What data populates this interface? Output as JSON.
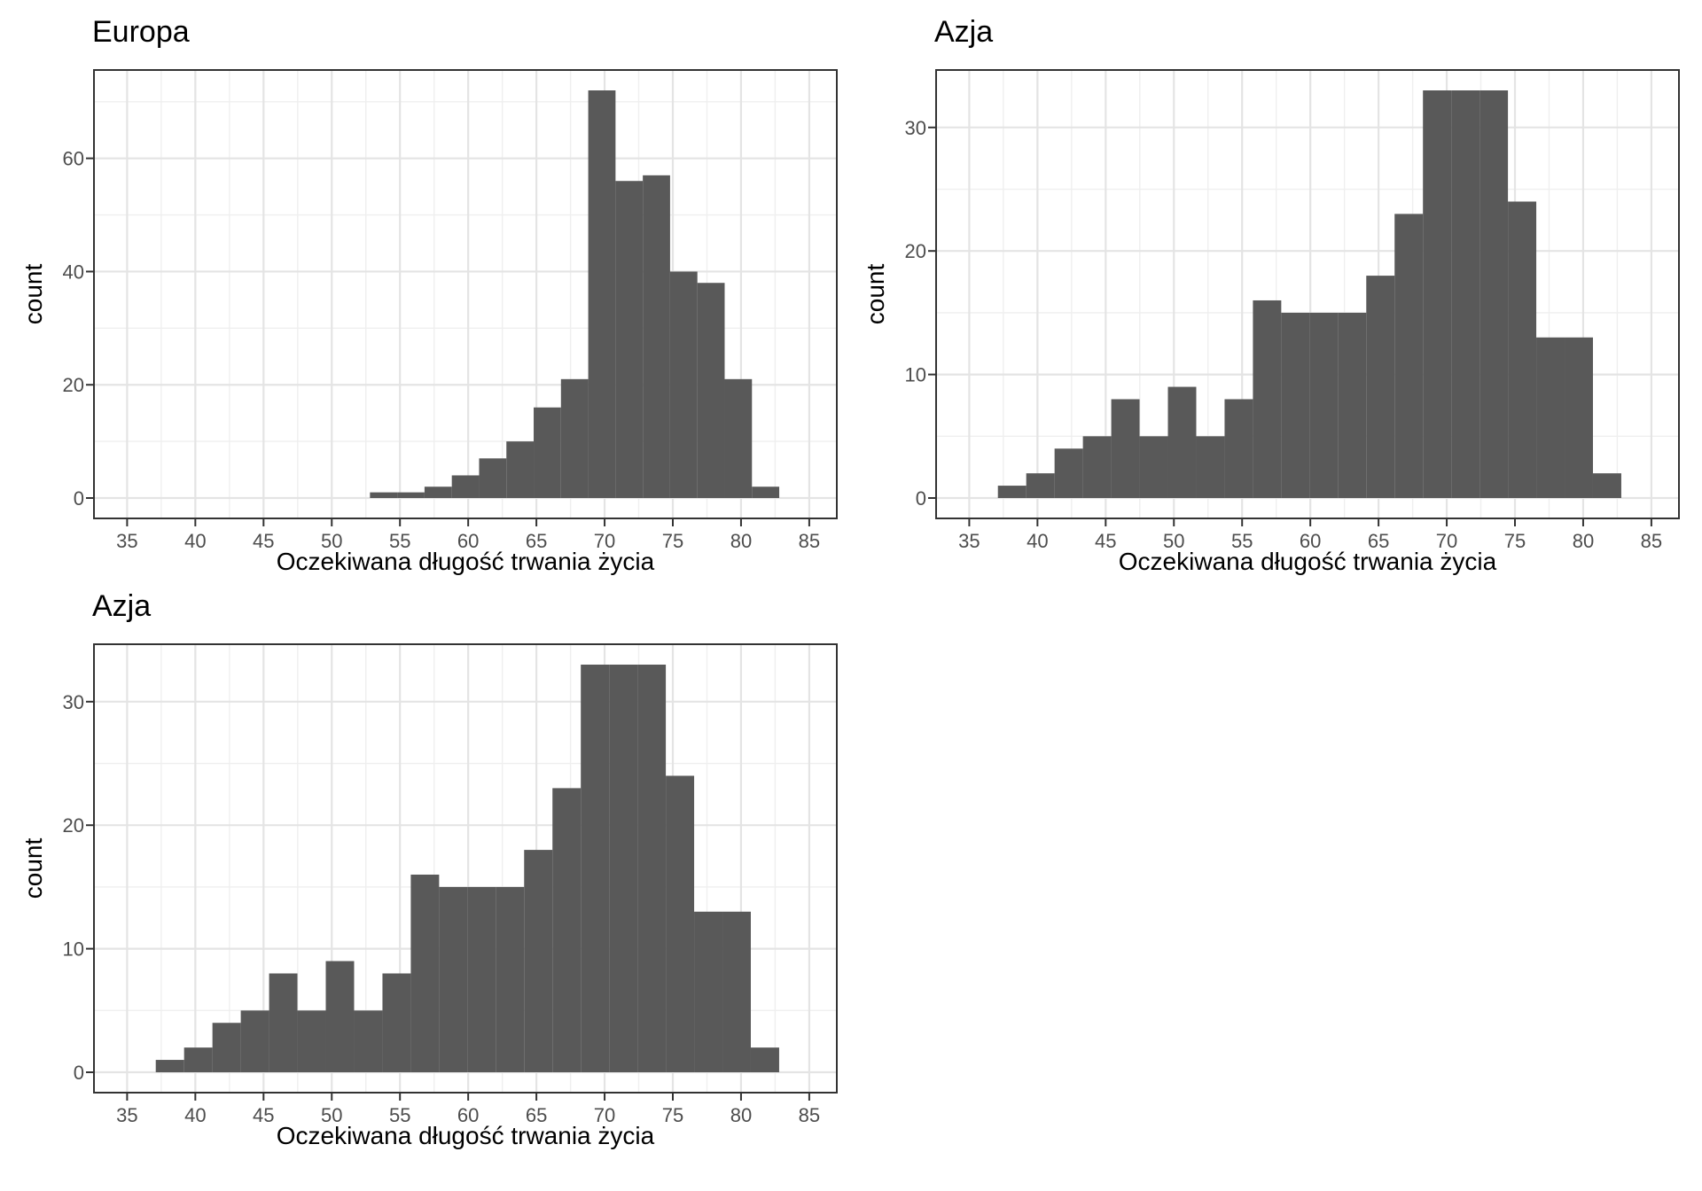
{
  "page": {
    "background_color": "#ffffff",
    "bar_color": "#595959",
    "panel_border_color": "#333333",
    "grid_major_color": "#e4e4e4",
    "grid_minor_color": "#efefef",
    "axis_text_color": "#4d4d4d",
    "tick_mark_color": "#333333",
    "title_color": "#000000"
  },
  "chart_data": [
    {
      "type": "histogram",
      "title": "Europa",
      "xlabel": "Oczekiwana długość trwania życia",
      "ylabel": "count",
      "bin_start": 52.8,
      "bin_width": 2.0,
      "counts": [
        1,
        1,
        2,
        4,
        7,
        10,
        16,
        21,
        72,
        56,
        57,
        40,
        38,
        21,
        2
      ],
      "x_ticks": [
        35,
        40,
        45,
        50,
        55,
        60,
        65,
        70,
        75,
        80,
        85
      ],
      "y_ticks": [
        0,
        20,
        40,
        60
      ],
      "y_max": 72,
      "x_range_shown": [
        32.6,
        87.0
      ],
      "grid": "major+minor",
      "legend": "none"
    },
    {
      "type": "histogram",
      "title": "Azja",
      "xlabel": "Oczekiwana długość trwania życia",
      "ylabel": "count",
      "bin_start": 37.1,
      "bin_width": 2.077,
      "counts": [
        1,
        2,
        4,
        5,
        8,
        5,
        9,
        5,
        8,
        16,
        15,
        15,
        15,
        18,
        23,
        33,
        33,
        33,
        24,
        13,
        13,
        2
      ],
      "x_ticks": [
        35,
        40,
        45,
        50,
        55,
        60,
        65,
        70,
        75,
        80,
        85
      ],
      "y_ticks": [
        0,
        10,
        20,
        30
      ],
      "y_max": 33,
      "x_range_shown": [
        32.6,
        87.0
      ],
      "grid": "major+minor",
      "legend": "none"
    },
    {
      "type": "histogram",
      "title": "Azja",
      "xlabel": "Oczekiwana długość trwania życia",
      "ylabel": "count",
      "bin_start": 37.1,
      "bin_width": 2.077,
      "counts": [
        1,
        2,
        4,
        5,
        8,
        5,
        9,
        5,
        8,
        16,
        15,
        15,
        15,
        18,
        23,
        33,
        33,
        33,
        24,
        13,
        13,
        2
      ],
      "x_ticks": [
        35,
        40,
        45,
        50,
        55,
        60,
        65,
        70,
        75,
        80,
        85
      ],
      "y_ticks": [
        0,
        10,
        20,
        30
      ],
      "y_max": 33,
      "x_range_shown": [
        32.6,
        87.0
      ],
      "grid": "major+minor",
      "legend": "none"
    }
  ]
}
